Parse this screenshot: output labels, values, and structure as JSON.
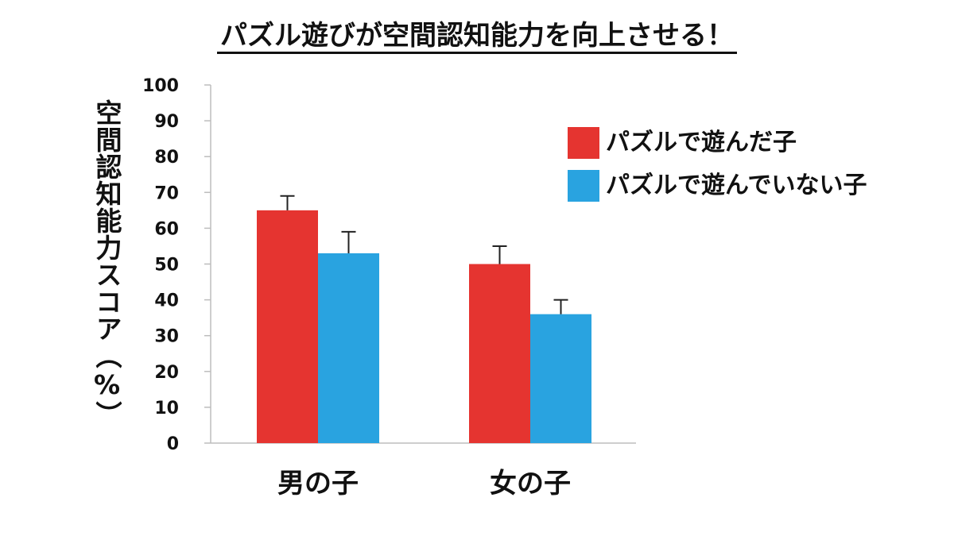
{
  "chart_data": {
    "type": "bar",
    "title": "パズル遊びが空間認知能力を向上させる！",
    "ylabel": "空間認知能力スコア（%）",
    "xlabel": "",
    "categories": [
      "男の子",
      "女の子"
    ],
    "series": [
      {
        "name": "パズルで遊んだ子",
        "values": [
          65,
          50
        ],
        "errors": [
          4,
          5
        ],
        "color": "#e53430"
      },
      {
        "name": "パズルで遊んでいない子",
        "values": [
          53,
          36
        ],
        "errors": [
          6,
          4
        ],
        "color": "#29a3e0"
      }
    ],
    "ylim": [
      0,
      100
    ],
    "yticks": [
      "0",
      "10",
      "20",
      "30",
      "40",
      "50",
      "60",
      "70",
      "80",
      "90",
      "100"
    ],
    "grid": false,
    "legend_position": "right"
  }
}
